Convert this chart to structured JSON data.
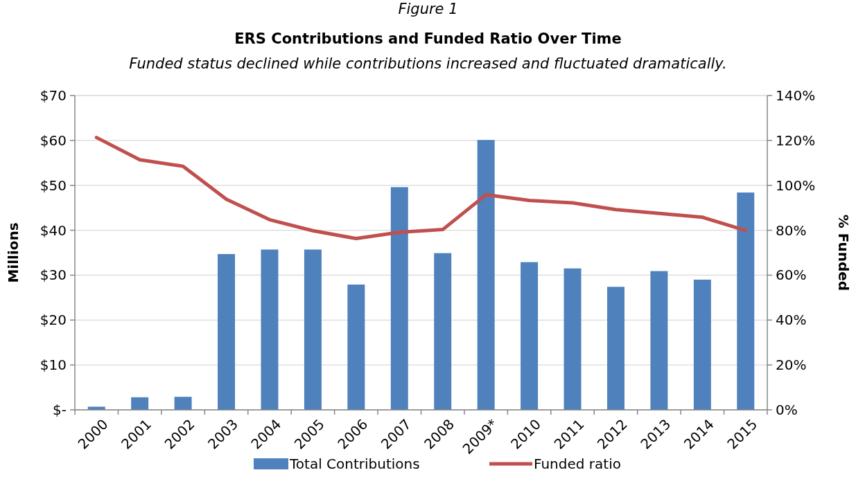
{
  "chart_data": {
    "type": "bar",
    "title": "ERS Contributions and Funded Ratio Over Time",
    "subtitle": "Funded status declined while contributions increased and fluctuated dramatically.",
    "annotations": [
      "Figure 1"
    ],
    "ylabel": "Millions",
    "y2label": "% Funded",
    "categories": [
      "2000",
      "2001",
      "2002",
      "2003",
      "2004",
      "2005",
      "2006",
      "2007",
      "2008",
      "2009*",
      "2010",
      "2011",
      "2012",
      "2013",
      "2014",
      "2015"
    ],
    "series": [
      {
        "name": "Total Contributions",
        "color": "#4f81bd",
        "values": [
          0.7,
          2.8,
          2.9,
          34.7,
          35.7,
          35.7,
          27.9,
          49.6,
          34.9,
          60.1,
          32.9,
          31.5,
          27.4,
          30.9,
          29.0,
          48.4
        ]
      },
      {
        "name": "Funded ratio",
        "type": "line",
        "axis": "y2",
        "color": "#c0504d",
        "values": [
          121.3,
          111.4,
          108.5,
          93.8,
          84.7,
          79.8,
          76.3,
          79.1,
          80.3,
          95.8,
          93.3,
          92.2,
          89.2,
          87.5,
          85.8,
          79.9
        ]
      }
    ],
    "ylim": [
      0,
      70
    ],
    "yticks": [
      {
        "value": 0,
        "label": "$-"
      },
      {
        "value": 10,
        "label": "$10"
      },
      {
        "value": 20,
        "label": "$20"
      },
      {
        "value": 30,
        "label": "$30"
      },
      {
        "value": 40,
        "label": "$40"
      },
      {
        "value": 50,
        "label": "$50"
      },
      {
        "value": 60,
        "label": "$60"
      },
      {
        "value": 70,
        "label": "$70"
      }
    ],
    "y2lim": [
      0,
      140
    ],
    "y2ticks": [
      {
        "value": 0,
        "label": "0%"
      },
      {
        "value": 20,
        "label": "20%"
      },
      {
        "value": 40,
        "label": "40%"
      },
      {
        "value": 60,
        "label": "60%"
      },
      {
        "value": 80,
        "label": "80%"
      },
      {
        "value": 100,
        "label": "100%"
      },
      {
        "value": 120,
        "label": "120%"
      },
      {
        "value": 140,
        "label": "140%"
      }
    ],
    "grid": "y",
    "legend": "bottom"
  }
}
